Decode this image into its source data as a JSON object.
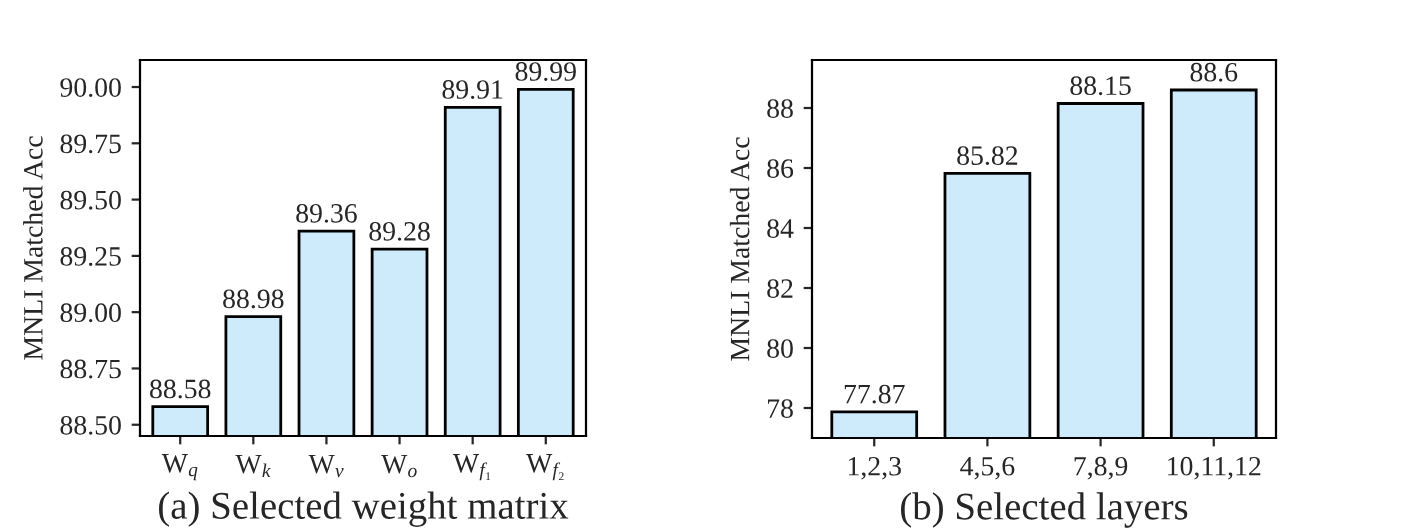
{
  "chart_data": [
    {
      "type": "bar",
      "xlabel": "(a) Selected weight matrix",
      "ylabel": "MNLI Matched Acc",
      "categories": [
        "W$_{q}$",
        "W$_{k}$",
        "W$_{v}$",
        "W$_{o}$",
        "W$_{f₁}$",
        "W$_{f₂}$"
      ],
      "values": [
        88.58,
        88.98,
        89.36,
        89.28,
        89.91,
        89.99
      ],
      "color": "#cdebfb",
      "ylim": [
        88.45,
        90.12
      ],
      "yticks": [
        {
          "value": 88.5,
          "label": "88.50"
        },
        {
          "value": 88.75,
          "label": "88.75"
        },
        {
          "value": 89.0,
          "label": "89.00"
        },
        {
          "value": 89.25,
          "label": "89.25"
        },
        {
          "value": 89.5,
          "label": "89.50"
        },
        {
          "value": 89.75,
          "label": "89.75"
        },
        {
          "value": 90.0,
          "label": "90.00"
        }
      ],
      "data_labels": true,
      "grid": false,
      "legend": false
    },
    {
      "type": "bar",
      "xlabel": "(b) Selected layers",
      "ylabel": "MNLI Matched Acc",
      "categories": [
        "1,2,3",
        "4,5,6",
        "7,8,9",
        "10,11,12"
      ],
      "values": [
        77.87,
        85.82,
        88.15,
        88.6
      ],
      "color": "#cdebfb",
      "ylim": [
        77,
        89.6
      ],
      "yticks": [
        78,
        80,
        82,
        84,
        86,
        88
      ],
      "data_labels": true,
      "grid": false,
      "legend": false
    }
  ]
}
